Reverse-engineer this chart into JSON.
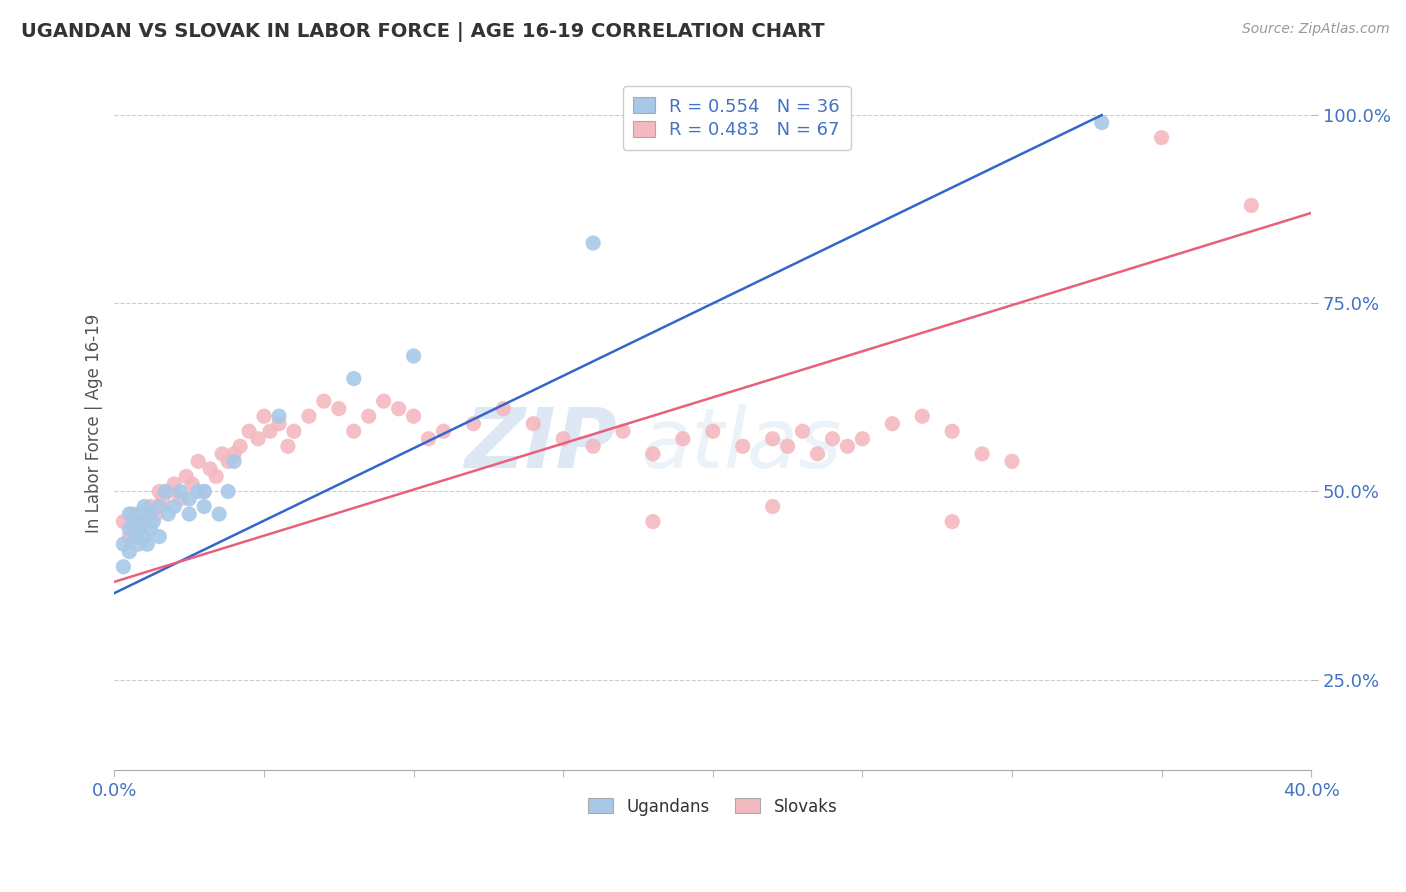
{
  "title": "UGANDAN VS SLOVAK IN LABOR FORCE | AGE 16-19 CORRELATION CHART",
  "source": "Source: ZipAtlas.com",
  "ylabel": "In Labor Force | Age 16-19",
  "xlim": [
    0.0,
    0.4
  ],
  "ylim": [
    0.13,
    1.05
  ],
  "xticks": [
    0.0,
    0.05,
    0.1,
    0.15,
    0.2,
    0.25,
    0.3,
    0.35,
    0.4
  ],
  "yticks": [
    0.25,
    0.5,
    0.75,
    1.0
  ],
  "ytick_labels": [
    "25.0%",
    "50.0%",
    "75.0%",
    "100.0%"
  ],
  "xtick_labels": [
    "0.0%",
    "",
    "",
    "",
    "",
    "",
    "",
    "",
    "40.0%"
  ],
  "blue_R": 0.554,
  "blue_N": 36,
  "pink_R": 0.483,
  "pink_N": 67,
  "blue_color": "#a8c8e8",
  "pink_color": "#f4b8c0",
  "blue_line_color": "#3366cc",
  "pink_line_color": "#e8607a",
  "watermark_zip": "ZIP",
  "watermark_atlas": "atlas",
  "blue_scatter_x": [
    0.003,
    0.003,
    0.005,
    0.005,
    0.005,
    0.007,
    0.007,
    0.008,
    0.008,
    0.008,
    0.01,
    0.01,
    0.01,
    0.011,
    0.012,
    0.012,
    0.013,
    0.015,
    0.015,
    0.017,
    0.018,
    0.02,
    0.022,
    0.025,
    0.025,
    0.028,
    0.03,
    0.03,
    0.035,
    0.038,
    0.04,
    0.055,
    0.08,
    0.1,
    0.16,
    0.33
  ],
  "blue_scatter_y": [
    0.43,
    0.4,
    0.45,
    0.42,
    0.47,
    0.44,
    0.46,
    0.43,
    0.45,
    0.47,
    0.46,
    0.44,
    0.48,
    0.43,
    0.47,
    0.45,
    0.46,
    0.48,
    0.44,
    0.5,
    0.47,
    0.48,
    0.5,
    0.47,
    0.49,
    0.5,
    0.48,
    0.5,
    0.47,
    0.5,
    0.54,
    0.6,
    0.65,
    0.68,
    0.83,
    0.99
  ],
  "pink_scatter_x": [
    0.003,
    0.005,
    0.006,
    0.007,
    0.008,
    0.01,
    0.012,
    0.014,
    0.015,
    0.016,
    0.018,
    0.02,
    0.022,
    0.024,
    0.026,
    0.028,
    0.03,
    0.032,
    0.034,
    0.036,
    0.038,
    0.04,
    0.042,
    0.045,
    0.048,
    0.05,
    0.052,
    0.055,
    0.058,
    0.06,
    0.065,
    0.07,
    0.075,
    0.08,
    0.085,
    0.09,
    0.095,
    0.1,
    0.105,
    0.11,
    0.12,
    0.13,
    0.14,
    0.15,
    0.16,
    0.17,
    0.18,
    0.19,
    0.2,
    0.21,
    0.22,
    0.225,
    0.23,
    0.235,
    0.24,
    0.245,
    0.25,
    0.26,
    0.27,
    0.28,
    0.29,
    0.3,
    0.18,
    0.22,
    0.28,
    0.35,
    0.38
  ],
  "pink_scatter_y": [
    0.46,
    0.44,
    0.47,
    0.45,
    0.46,
    0.46,
    0.48,
    0.47,
    0.5,
    0.49,
    0.5,
    0.51,
    0.49,
    0.52,
    0.51,
    0.54,
    0.5,
    0.53,
    0.52,
    0.55,
    0.54,
    0.55,
    0.56,
    0.58,
    0.57,
    0.6,
    0.58,
    0.59,
    0.56,
    0.58,
    0.6,
    0.62,
    0.61,
    0.58,
    0.6,
    0.62,
    0.61,
    0.6,
    0.57,
    0.58,
    0.59,
    0.61,
    0.59,
    0.57,
    0.56,
    0.58,
    0.55,
    0.57,
    0.58,
    0.56,
    0.57,
    0.56,
    0.58,
    0.55,
    0.57,
    0.56,
    0.57,
    0.59,
    0.6,
    0.58,
    0.55,
    0.54,
    0.46,
    0.48,
    0.46,
    0.97,
    0.88
  ],
  "blue_line_x": [
    0.0,
    0.33
  ],
  "blue_line_y": [
    0.365,
    1.0
  ],
  "pink_line_x": [
    0.0,
    0.4
  ],
  "pink_line_y": [
    0.38,
    0.87
  ]
}
